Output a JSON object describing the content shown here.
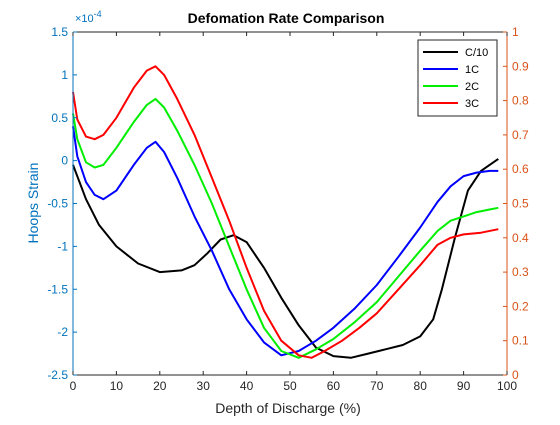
{
  "chart_data": {
    "type": "line",
    "title": "Defomation Rate Comparison",
    "xlabel": "Depth of Discharge (%)",
    "ylabel_left": "Hoops Strain",
    "ylabel_right": "",
    "left_exponent": "×10",
    "left_exponent_power": "-4",
    "xlim": [
      0,
      100
    ],
    "ylim_left": [
      -2.5,
      1.5
    ],
    "ylim_right": [
      0,
      1
    ],
    "x_ticks": [
      "0",
      "10",
      "20",
      "30",
      "40",
      "50",
      "60",
      "70",
      "80",
      "90",
      "100"
    ],
    "y_ticks_left": [
      "-2.5",
      "-2",
      "-1.5",
      "-1",
      "-0.5",
      "0",
      "0.5",
      "1",
      "1.5"
    ],
    "y_ticks_right": [
      "0",
      "0.1",
      "0.2",
      "0.3",
      "0.4",
      "0.5",
      "0.6",
      "0.7",
      "0.8",
      "0.9",
      "1"
    ],
    "grid": false,
    "legend_position": "top-right",
    "colors": {
      "left_axis": "#0072BD",
      "right_axis": "#D95319",
      "axes": "#262626"
    },
    "series": [
      {
        "name": "C/10",
        "color": "#000000",
        "x": [
          0,
          3,
          6,
          10,
          15,
          20,
          25,
          28,
          31,
          34,
          37,
          40,
          44,
          48,
          52,
          56,
          60,
          64,
          68,
          72,
          76,
          80,
          83,
          85,
          88,
          91,
          94,
          96,
          98
        ],
        "y": [
          -0.05,
          -0.45,
          -0.75,
          -1.0,
          -1.2,
          -1.3,
          -1.28,
          -1.22,
          -1.08,
          -0.92,
          -0.87,
          -0.95,
          -1.25,
          -1.6,
          -1.92,
          -2.18,
          -2.28,
          -2.3,
          -2.25,
          -2.2,
          -2.15,
          -2.05,
          -1.85,
          -1.5,
          -0.9,
          -0.35,
          -0.12,
          -0.05,
          0.02
        ]
      },
      {
        "name": "1C",
        "color": "#0000FF",
        "x": [
          0,
          1,
          3,
          5,
          7,
          10,
          14,
          17,
          19,
          21,
          24,
          28,
          32,
          36,
          40,
          44,
          48,
          52,
          56,
          60,
          65,
          70,
          75,
          80,
          84,
          87,
          90,
          93,
          96,
          98
        ],
        "y": [
          0.4,
          0.05,
          -0.25,
          -0.4,
          -0.45,
          -0.35,
          -0.05,
          0.15,
          0.22,
          0.1,
          -0.2,
          -0.65,
          -1.05,
          -1.5,
          -1.85,
          -2.12,
          -2.27,
          -2.22,
          -2.1,
          -1.95,
          -1.72,
          -1.45,
          -1.12,
          -0.78,
          -0.48,
          -0.3,
          -0.18,
          -0.14,
          -0.12,
          -0.12
        ]
      },
      {
        "name": "2C",
        "color": "#00EE00",
        "x": [
          0,
          1,
          3,
          5,
          7,
          10,
          14,
          17,
          19,
          21,
          24,
          28,
          32,
          36,
          40,
          44,
          48,
          52,
          56,
          60,
          65,
          70,
          75,
          80,
          84,
          87,
          90,
          93,
          96,
          98
        ],
        "y": [
          0.55,
          0.25,
          -0.02,
          -0.08,
          -0.05,
          0.15,
          0.45,
          0.65,
          0.72,
          0.62,
          0.35,
          -0.05,
          -0.5,
          -1.0,
          -1.5,
          -1.95,
          -2.22,
          -2.3,
          -2.2,
          -2.08,
          -1.88,
          -1.65,
          -1.35,
          -1.05,
          -0.82,
          -0.7,
          -0.65,
          -0.6,
          -0.57,
          -0.55
        ]
      },
      {
        "name": "3C",
        "color": "#FF0000",
        "x": [
          0,
          1,
          3,
          5,
          7,
          10,
          14,
          17,
          19,
          21,
          24,
          28,
          32,
          36,
          40,
          44,
          48,
          52,
          55,
          58,
          62,
          66,
          70,
          75,
          80,
          84,
          87,
          90,
          94,
          98
        ],
        "y": [
          0.8,
          0.48,
          0.28,
          0.25,
          0.3,
          0.5,
          0.85,
          1.05,
          1.1,
          1.0,
          0.72,
          0.3,
          -0.2,
          -0.7,
          -1.25,
          -1.75,
          -2.1,
          -2.27,
          -2.3,
          -2.22,
          -2.1,
          -1.95,
          -1.78,
          -1.5,
          -1.22,
          -0.98,
          -0.9,
          -0.86,
          -0.84,
          -0.8
        ]
      }
    ]
  }
}
